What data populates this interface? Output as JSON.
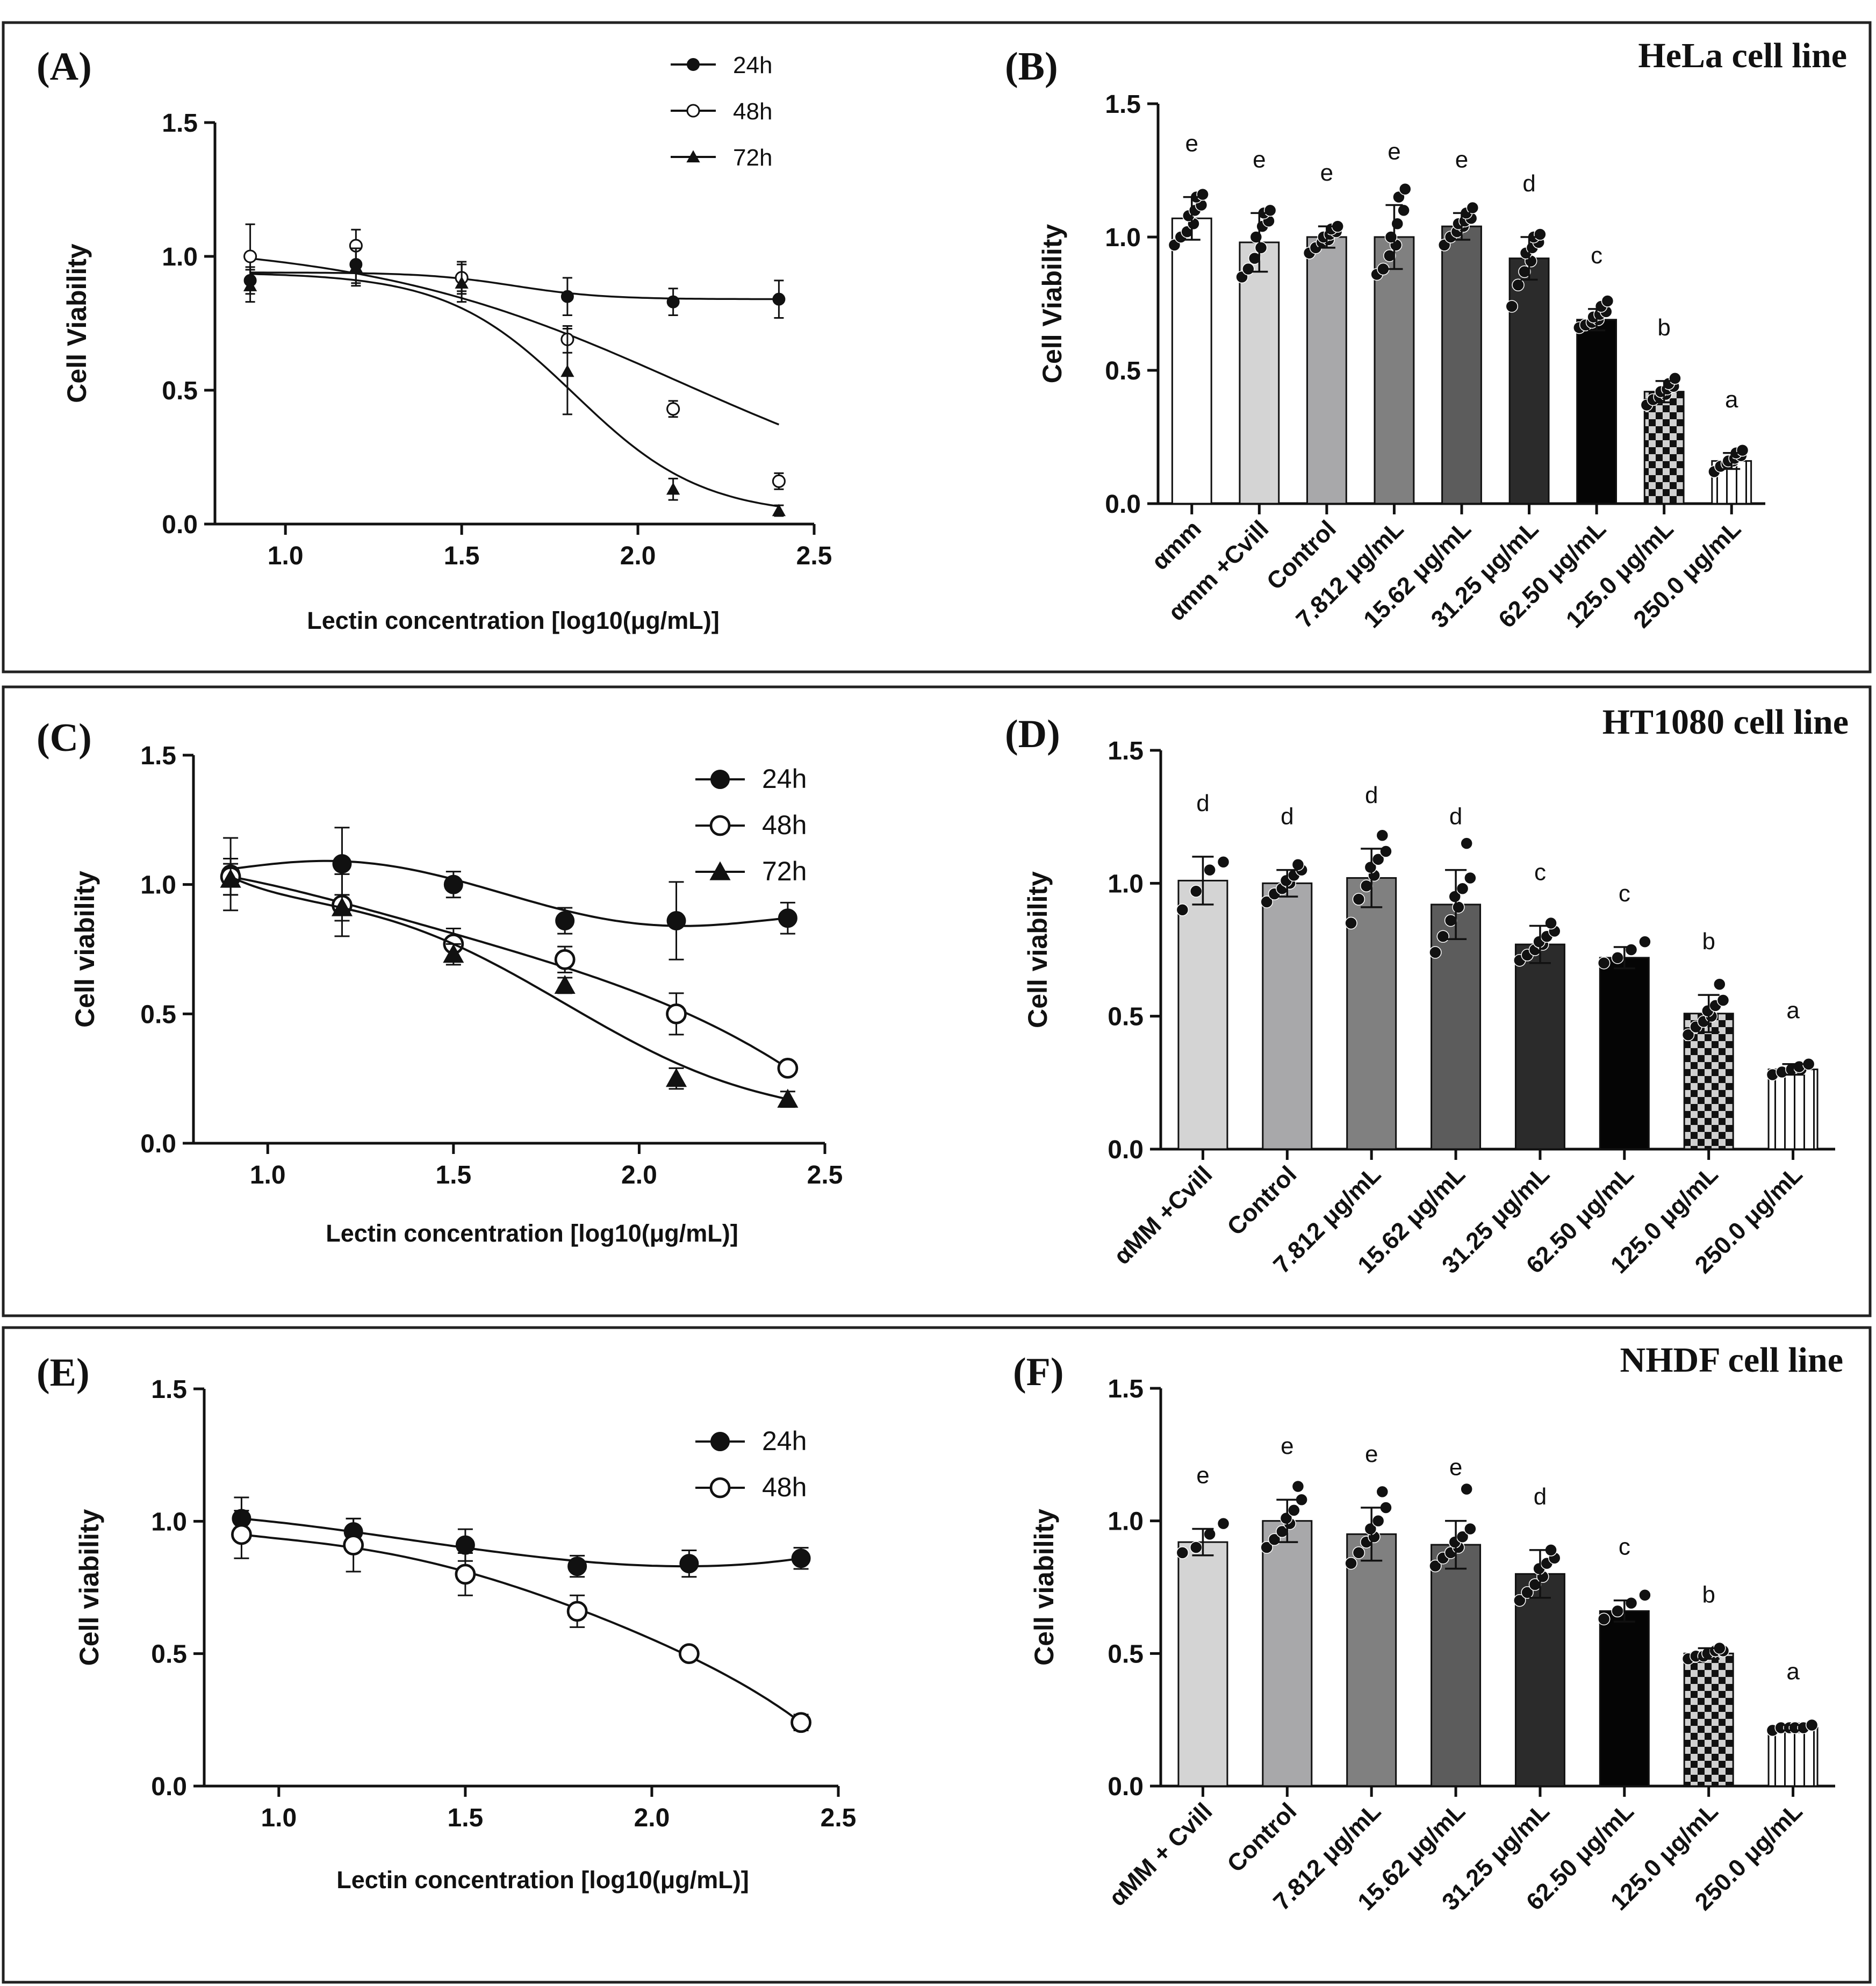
{
  "figure": {
    "background": "#ffffff",
    "frame_color": "#222222"
  },
  "chart_data": [
    {
      "id": "A",
      "type": "line",
      "panel_label": "(A)",
      "title": "",
      "xlabel": "Lectin concentration [log10(μg/mL)]",
      "ylabel": "Cell Viability",
      "xlim": [
        0.8,
        2.5
      ],
      "ylim": [
        0.0,
        1.5
      ],
      "x_ticks": [
        "1.0",
        "1.5",
        "2.0",
        "2.5"
      ],
      "y_ticks": [
        "0.0",
        "0.5",
        "1.0",
        "1.5"
      ],
      "x_tick_values": [
        1.0,
        1.5,
        2.0,
        2.5
      ],
      "y_tick_values": [
        0.0,
        0.5,
        1.0,
        1.5
      ],
      "legend": {
        "position": "top-right",
        "size": "normal"
      },
      "fit": "sigmoid",
      "marker_size": "small",
      "series": [
        {
          "name": "24h",
          "marker": "filled-circle",
          "x": [
            0.9,
            1.2,
            1.5,
            1.8,
            2.1,
            2.4
          ],
          "values": [
            0.91,
            0.97,
            0.92,
            0.85,
            0.83,
            0.84
          ],
          "errors": [
            0.05,
            0.07,
            0.06,
            0.07,
            0.05,
            0.07
          ],
          "fit_params": [
            0.94,
            0.84,
            1.65,
            8
          ]
        },
        {
          "name": "48h",
          "marker": "open-circle",
          "x": [
            0.9,
            1.2,
            1.5,
            1.8,
            2.1,
            2.4
          ],
          "values": [
            1.0,
            1.04,
            0.92,
            0.69,
            0.43,
            0.16
          ],
          "errors": [
            0.12,
            0.06,
            0.05,
            0.05,
            0.03,
            0.03
          ],
          "fit_params": [
            1.06,
            0.0,
            2.12,
            2.2
          ]
        },
        {
          "name": "72h",
          "marker": "filled-triangle",
          "x": [
            0.9,
            1.2,
            1.5,
            1.8,
            2.1,
            2.4
          ],
          "values": [
            0.89,
            0.96,
            0.9,
            0.57,
            0.13,
            0.05
          ],
          "errors": [
            0.06,
            0.07,
            0.07,
            0.16,
            0.04,
            0.02
          ],
          "fit_params": [
            0.94,
            0.03,
            1.82,
            5.5
          ]
        }
      ]
    },
    {
      "id": "B",
      "type": "bar",
      "panel_label": "(B)",
      "title": "HeLa cell line",
      "xlabel": "",
      "ylabel": "Cell Viability",
      "ylim": [
        0.0,
        1.5
      ],
      "y_ticks": [
        "0.0",
        "0.5",
        "1.0",
        "1.5"
      ],
      "y_tick_values": [
        0.0,
        0.5,
        1.0,
        1.5
      ],
      "categories": [
        "αmm",
        "αmm +Cvill",
        "Control",
        "7.812 μg/mL",
        "15.62 μg/mL",
        "31.25 μg/mL",
        "62.50 μg/mL",
        "125.0 μg/mL",
        "250.0 μg/mL"
      ],
      "values": [
        1.07,
        0.98,
        1.0,
        1.0,
        1.04,
        0.92,
        0.69,
        0.42,
        0.16
      ],
      "errors": [
        0.08,
        0.11,
        0.04,
        0.12,
        0.05,
        0.08,
        0.04,
        0.04,
        0.03
      ],
      "significance": [
        "e",
        "e",
        "e",
        "e",
        "e",
        "d",
        "c",
        "b",
        "a"
      ],
      "bar_styles": [
        "white",
        "#d4d4d4",
        "#a8a8aa",
        "#808080",
        "#5c5c5c",
        "#2b2b2b",
        "#050505",
        "checker",
        "stripes"
      ],
      "points": [
        [
          0.97,
          1.0,
          1.02,
          1.05,
          1.08,
          1.1,
          1.12,
          1.15,
          1.16
        ],
        [
          0.85,
          0.88,
          0.92,
          0.96,
          1.0,
          1.04,
          1.06,
          1.09,
          1.1
        ],
        [
          0.94,
          0.96,
          0.98,
          0.99,
          1.0,
          1.01,
          1.02,
          1.03,
          1.04
        ],
        [
          0.86,
          0.88,
          0.93,
          0.97,
          1.0,
          1.05,
          1.1,
          1.15,
          1.18
        ],
        [
          0.97,
          1.0,
          1.02,
          1.04,
          1.05,
          1.06,
          1.07,
          1.09,
          1.11
        ],
        [
          0.74,
          0.82,
          0.87,
          0.91,
          0.94,
          0.96,
          0.98,
          1.0,
          1.01
        ],
        [
          0.66,
          0.67,
          0.68,
          0.69,
          0.7,
          0.71,
          0.72,
          0.74,
          0.76
        ],
        [
          0.37,
          0.39,
          0.4,
          0.41,
          0.42,
          0.43,
          0.44,
          0.45,
          0.47
        ],
        [
          0.12,
          0.14,
          0.15,
          0.16,
          0.16,
          0.17,
          0.18,
          0.19,
          0.2
        ]
      ]
    },
    {
      "id": "C",
      "type": "line",
      "panel_label": "(C)",
      "title": "",
      "xlabel": "Lectin concentration [log10(μg/mL)]",
      "ylabel": "Cell viability",
      "xlim": [
        0.8,
        2.5
      ],
      "ylim": [
        0.0,
        1.5
      ],
      "x_ticks": [
        "1.0",
        "1.5",
        "2.0",
        "2.5"
      ],
      "y_ticks": [
        "0.0",
        "0.5",
        "1.0",
        "1.5"
      ],
      "x_tick_values": [
        1.0,
        1.5,
        2.0,
        2.5
      ],
      "y_tick_values": [
        0.0,
        0.5,
        1.0,
        1.5
      ],
      "legend": {
        "position": "top-right",
        "size": "large"
      },
      "fit": "poly",
      "marker_size": "large",
      "series": [
        {
          "name": "24h",
          "marker": "filled-circle",
          "x": [
            0.9,
            1.2,
            1.5,
            1.8,
            2.1,
            2.4
          ],
          "values": [
            1.04,
            1.08,
            1.0,
            0.86,
            0.86,
            0.87
          ],
          "errors": [
            0.14,
            0.14,
            0.05,
            0.05,
            0.15,
            0.06
          ],
          "fit_knots": [
            1.06,
            1.09,
            1.02,
            0.9,
            0.84,
            0.87
          ]
        },
        {
          "name": "48h",
          "marker": "open-circle",
          "x": [
            0.9,
            1.2,
            1.5,
            1.8,
            2.1,
            2.4
          ],
          "values": [
            1.03,
            0.92,
            0.77,
            0.71,
            0.5,
            0.29
          ],
          "errors": [
            0.07,
            0.12,
            0.06,
            0.05,
            0.08,
            0.02
          ],
          "fit_knots": [
            1.03,
            0.93,
            0.81,
            0.68,
            0.52,
            0.29
          ]
        },
        {
          "name": "72h",
          "marker": "filled-triangle",
          "x": [
            0.9,
            1.2,
            1.5,
            1.8,
            2.1,
            2.4
          ],
          "values": [
            1.02,
            0.91,
            0.73,
            0.61,
            0.25,
            0.17
          ],
          "errors": [
            0.06,
            0.05,
            0.04,
            0.03,
            0.04,
            0.03
          ],
          "fit_knots": [
            1.03,
            0.91,
            0.77,
            0.54,
            0.31,
            0.17
          ]
        }
      ]
    },
    {
      "id": "D",
      "type": "bar",
      "panel_label": "(D)",
      "title": "HT1080 cell line",
      "xlabel": "",
      "ylabel": "Cell viability",
      "ylim": [
        0.0,
        1.5
      ],
      "y_ticks": [
        "0.0",
        "0.5",
        "1.0",
        "1.5"
      ],
      "y_tick_values": [
        0.0,
        0.5,
        1.0,
        1.5
      ],
      "categories": [
        "αMM +Cvill",
        "Control",
        "7.812 μg/mL",
        "15.62 μg/mL",
        "31.25 μg/mL",
        "62.50 μg/mL",
        "125.0 μg/mL",
        "250.0 μg/mL"
      ],
      "values": [
        1.01,
        1.0,
        1.02,
        0.92,
        0.77,
        0.72,
        0.51,
        0.3
      ],
      "errors": [
        0.09,
        0.05,
        0.11,
        0.13,
        0.07,
        0.04,
        0.07,
        0.02
      ],
      "significance": [
        "d",
        "d",
        "d",
        "d",
        "c",
        "c",
        "b",
        "a"
      ],
      "bar_styles": [
        "#d4d4d4",
        "#a8a8aa",
        "#808080",
        "#5c5c5c",
        "#2b2b2b",
        "#050505",
        "checker",
        "stripes"
      ],
      "points": [
        [
          0.9,
          0.97,
          1.05,
          1.08
        ],
        [
          0.93,
          0.96,
          0.98,
          1.0,
          1.01,
          1.03,
          1.05,
          1.07
        ],
        [
          0.85,
          0.94,
          0.99,
          1.03,
          1.06,
          1.09,
          1.12,
          1.18
        ],
        [
          0.74,
          0.8,
          0.86,
          0.91,
          0.95,
          0.98,
          1.02,
          1.15
        ],
        [
          0.71,
          0.73,
          0.75,
          0.77,
          0.78,
          0.8,
          0.82,
          0.85
        ],
        [
          0.7,
          0.72,
          0.75,
          0.78
        ],
        [
          0.43,
          0.46,
          0.48,
          0.5,
          0.52,
          0.54,
          0.56,
          0.62
        ],
        [
          0.28,
          0.29,
          0.3,
          0.3,
          0.31,
          0.32
        ]
      ]
    },
    {
      "id": "E",
      "type": "line",
      "panel_label": "(E)",
      "title": "",
      "xlabel": "Lectin concentration [log10(μg/mL)]",
      "ylabel": "Cell viability",
      "xlim": [
        0.8,
        2.5
      ],
      "ylim": [
        0.0,
        1.5
      ],
      "x_ticks": [
        "1.0",
        "1.5",
        "2.0",
        "2.5"
      ],
      "y_ticks": [
        "0.0",
        "0.5",
        "1.0",
        "1.5"
      ],
      "x_tick_values": [
        1.0,
        1.5,
        2.0,
        2.5
      ],
      "y_tick_values": [
        0.0,
        0.5,
        1.0,
        1.5
      ],
      "legend": {
        "position": "top-right",
        "size": "large"
      },
      "fit": "poly",
      "marker_size": "large",
      "series": [
        {
          "name": "24h",
          "marker": "filled-circle",
          "x": [
            0.9,
            1.2,
            1.5,
            1.8,
            2.1,
            2.4
          ],
          "values": [
            1.01,
            0.96,
            0.91,
            0.83,
            0.84,
            0.86
          ],
          "errors": [
            0.08,
            0.05,
            0.06,
            0.04,
            0.05,
            0.04
          ],
          "fit_knots": [
            1.01,
            0.96,
            0.9,
            0.85,
            0.83,
            0.86
          ]
        },
        {
          "name": "48h",
          "marker": "open-circle",
          "x": [
            0.9,
            1.2,
            1.5,
            1.8,
            2.1,
            2.4
          ],
          "values": [
            0.95,
            0.91,
            0.8,
            0.66,
            0.5,
            0.24
          ],
          "errors": [
            0.09,
            0.1,
            0.08,
            0.06,
            0.02,
            0.03
          ],
          "fit_knots": [
            0.95,
            0.9,
            0.81,
            0.67,
            0.49,
            0.24
          ]
        }
      ]
    },
    {
      "id": "F",
      "type": "bar",
      "panel_label": "(F)",
      "title": "NHDF cell line",
      "xlabel": "",
      "ylabel": "Cell viability",
      "ylim": [
        0.0,
        1.5
      ],
      "y_ticks": [
        "0.0",
        "0.5",
        "1.0",
        "1.5"
      ],
      "y_tick_values": [
        0.0,
        0.5,
        1.0,
        1.5
      ],
      "categories": [
        "αMM + Cvill",
        "Control",
        "7.812 μg/mL",
        "15.62 μg/mL",
        "31.25 μg/mL",
        "62.50 μg/mL",
        "125.0 μg/mL",
        "250.0 μg/mL"
      ],
      "values": [
        0.92,
        1.0,
        0.95,
        0.91,
        0.8,
        0.66,
        0.5,
        0.22
      ],
      "errors": [
        0.05,
        0.08,
        0.1,
        0.09,
        0.09,
        0.04,
        0.02,
        0.01
      ],
      "significance": [
        "e",
        "e",
        "e",
        "e",
        "d",
        "c",
        "b",
        "a"
      ],
      "bar_styles": [
        "#d4d4d4",
        "#a8a8aa",
        "#808080",
        "#5c5c5c",
        "#2b2b2b",
        "#050505",
        "checker",
        "stripes"
      ],
      "points": [
        [
          0.88,
          0.9,
          0.95,
          0.99
        ],
        [
          0.9,
          0.93,
          0.96,
          0.99,
          1.01,
          1.04,
          1.08,
          1.13
        ],
        [
          0.84,
          0.88,
          0.92,
          0.94,
          0.97,
          1.0,
          1.05,
          1.11
        ],
        [
          0.83,
          0.86,
          0.88,
          0.9,
          0.92,
          0.94,
          0.97,
          1.12
        ],
        [
          0.7,
          0.73,
          0.76,
          0.79,
          0.82,
          0.84,
          0.86,
          0.89
        ],
        [
          0.63,
          0.66,
          0.69,
          0.72
        ],
        [
          0.48,
          0.49,
          0.49,
          0.5,
          0.5,
          0.51,
          0.51,
          0.52
        ],
        [
          0.21,
          0.22,
          0.22,
          0.22,
          0.22,
          0.22,
          0.23
        ]
      ]
    }
  ]
}
